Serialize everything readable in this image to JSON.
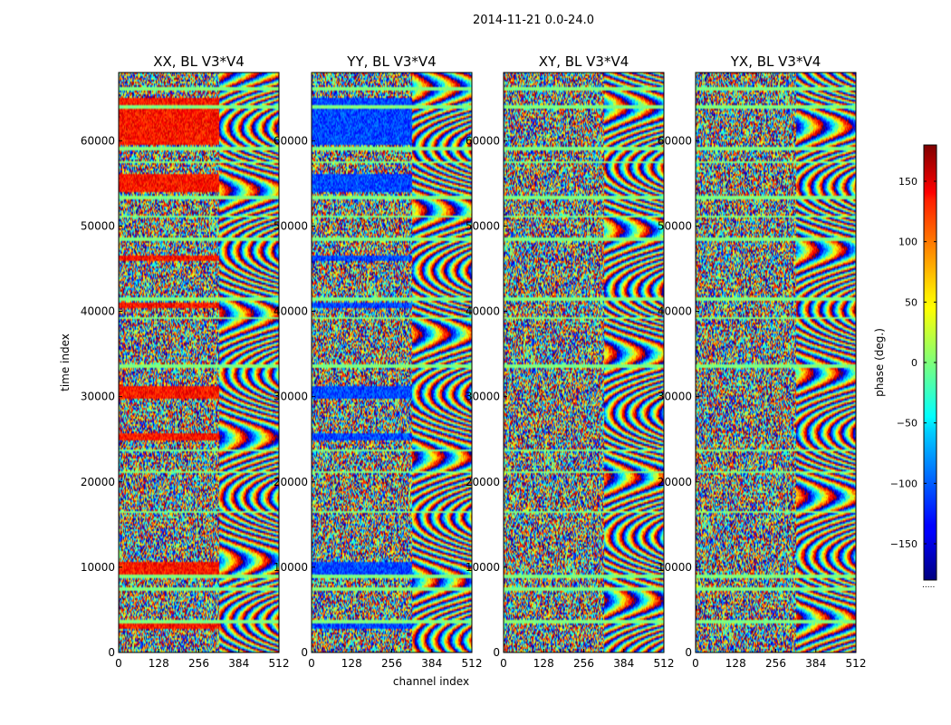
{
  "chart_data": {
    "type": "heatmap",
    "suptitle": "2014-11-21 0.0-24.0",
    "xlabel": "channel index",
    "ylabel": "time index",
    "x_range": [
      0,
      512
    ],
    "y_range": [
      0,
      68000
    ],
    "x_ticks": [
      "0",
      "128",
      "256",
      "384",
      "512"
    ],
    "y_ticks": [
      "0",
      "10000",
      "20000",
      "30000",
      "40000",
      "50000",
      "60000"
    ],
    "colorbar": {
      "label": "phase (deg.)",
      "range": [
        -180,
        180
      ],
      "ticks": [
        "150",
        "100",
        "50",
        "0",
        "−50",
        "−100",
        "−150"
      ],
      "tick_values": [
        150,
        100,
        50,
        0,
        -50,
        -100,
        -150
      ],
      "colormap": "jet",
      "offset_label": "....."
    },
    "panels": [
      {
        "title": "XX, BL V3*V4",
        "band_phase": 130
      },
      {
        "title": "YY, BL V3*V4",
        "band_phase": -110
      },
      {
        "title": "XY, BL V3*V4",
        "band_phase": null
      },
      {
        "title": "YX, BL V3*V4",
        "band_phase": null
      }
    ],
    "coherent_bands": [
      [
        2800,
        3300
      ],
      [
        9200,
        10600
      ],
      [
        24800,
        25800
      ],
      [
        29800,
        31200
      ],
      [
        40300,
        41000
      ],
      [
        45900,
        46600
      ],
      [
        54000,
        56200
      ],
      [
        59500,
        61800
      ],
      [
        61800,
        65000
      ]
    ],
    "flagged_bands": [
      [
        3500,
        3800
      ],
      [
        7300,
        7700
      ],
      [
        8800,
        9100
      ],
      [
        16300,
        16600
      ],
      [
        21000,
        21300
      ],
      [
        23600,
        23900
      ],
      [
        33400,
        33700
      ],
      [
        39100,
        39400
      ],
      [
        41200,
        41700
      ],
      [
        48300,
        48600
      ],
      [
        51000,
        51300
      ],
      [
        53200,
        53600
      ],
      [
        57300,
        57600
      ],
      [
        58800,
        59200
      ],
      [
        63800,
        64100
      ],
      [
        65900,
        66300
      ]
    ],
    "fringe_region": {
      "channel_start": 320,
      "note": "phase wrapping across channels"
    }
  }
}
